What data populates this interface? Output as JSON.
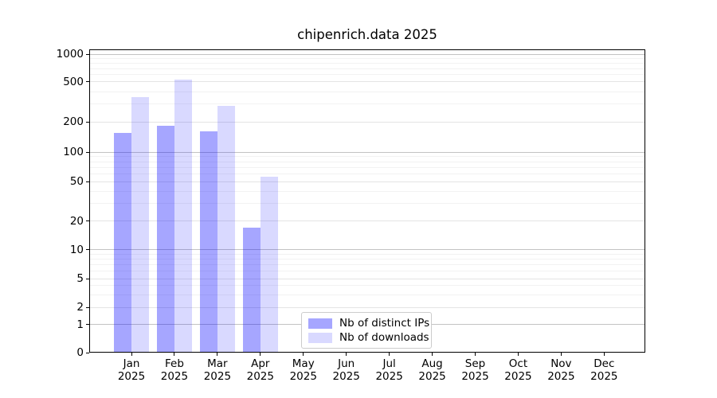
{
  "title": "chipenrich.data 2025",
  "chart_data": {
    "type": "bar",
    "title": "chipenrich.data 2025",
    "categories": [
      "Jan",
      "Feb",
      "Mar",
      "Apr",
      "May",
      "Jun",
      "Jul",
      "Aug",
      "Sep",
      "Oct",
      "Nov",
      "Dec"
    ],
    "year_label": "2025",
    "series": [
      {
        "name": "Nb of distinct IPs",
        "values": [
          155,
          185,
          160,
          17,
          0,
          0,
          0,
          0,
          0,
          0,
          0,
          0
        ]
      },
      {
        "name": "Nb of downloads",
        "values": [
          350,
          530,
          290,
          56,
          0,
          0,
          0,
          0,
          0,
          0,
          0,
          0
        ]
      }
    ],
    "y_ticks": [
      0,
      1,
      2,
      5,
      10,
      20,
      50,
      100,
      200,
      500,
      1000
    ],
    "y_minor_ticks": [
      3,
      4,
      6,
      7,
      8,
      9,
      30,
      40,
      60,
      70,
      80,
      90,
      300,
      400,
      600,
      700,
      800,
      900
    ],
    "ylim": [
      0,
      1000
    ],
    "scale": "symlog",
    "grid": true,
    "legend_position": "lower center",
    "xlabel": "",
    "ylabel": ""
  },
  "legend": {
    "items": [
      {
        "label": "Nb of distinct IPs",
        "swatch": "dark"
      },
      {
        "label": "Nb of downloads",
        "swatch": "light"
      }
    ]
  },
  "colors": {
    "bar_dark": "rgba(0,0,255,0.35)",
    "bar_light": "rgba(0,0,255,0.15)",
    "grid_major": "#c3c3c3",
    "grid_labeled": "#e4e4e4",
    "grid_minor": "#f2f2f2",
    "spine": "#000000",
    "legend_border": "#cccccc"
  }
}
